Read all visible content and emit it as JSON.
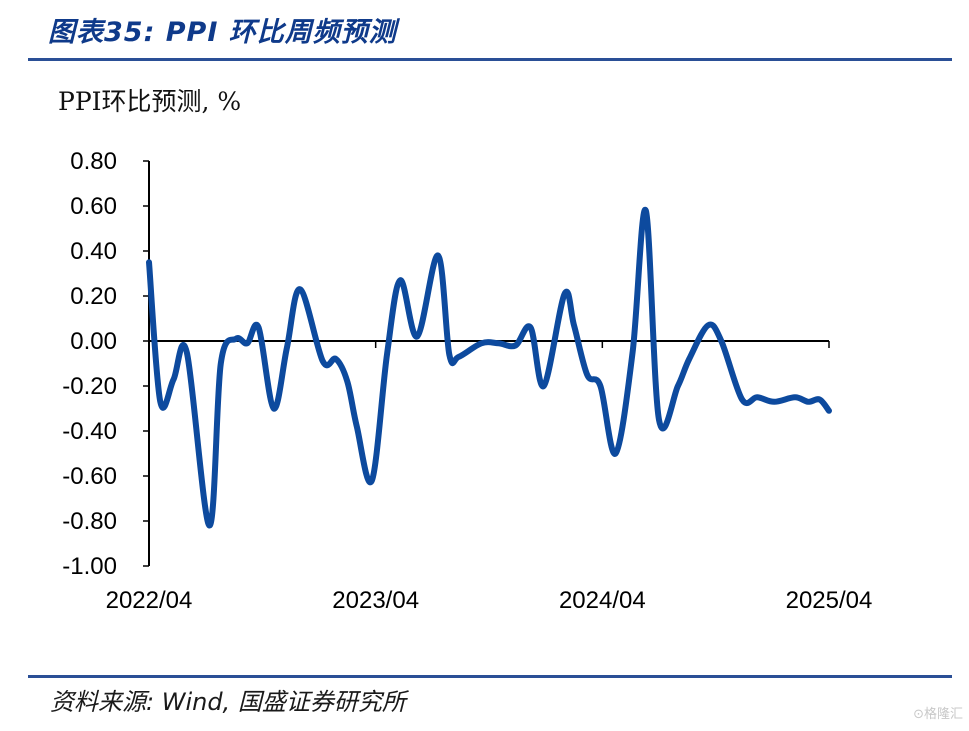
{
  "figure": {
    "title": "图表35:  PPI 环比周频预测",
    "source": "资料来源: Wind, 国盛证券研究所",
    "watermark": "⊙格隆汇"
  },
  "chart_data": {
    "type": "line",
    "title": "图表35:  PPI 环比周频预测",
    "ylabel": "PPI环比预测, %",
    "xlabel": "",
    "ylim": [
      -1.0,
      0.8
    ],
    "yticks": [
      0.8,
      0.6,
      0.4,
      0.2,
      0.0,
      -0.2,
      -0.4,
      -0.6,
      -0.8,
      -1.0
    ],
    "ytick_labels": [
      "0.80",
      "0.60",
      "0.40",
      "0.20",
      "0.00",
      "-0.20",
      "-0.40",
      "-0.60",
      "-0.80",
      "-1.00"
    ],
    "x_range_months": [
      0,
      36
    ],
    "xticks": [
      0,
      12,
      24,
      36
    ],
    "xtick_labels": [
      "2022/04",
      "2023/04",
      "2024/04",
      "2025/04"
    ],
    "grid": false,
    "legend": "none",
    "series": [
      {
        "name": "PPI环比预测",
        "color": "#0d4a9e",
        "x": [
          0,
          0.6,
          1.3,
          2.0,
          3.2,
          3.8,
          4.6,
          5.2,
          5.8,
          6.6,
          7.3,
          8.0,
          9.2,
          9.9,
          10.5,
          11.0,
          11.8,
          12.6,
          13.3,
          14.2,
          15.3,
          15.9,
          16.4,
          17.6,
          18.5,
          19.4,
          20.2,
          20.9,
          22.0,
          22.5,
          23.2,
          23.9,
          24.7,
          25.6,
          26.3,
          27.0,
          28.0,
          28.6,
          29.6,
          30.3,
          31.4,
          32.2,
          33.1,
          34.2,
          34.9,
          35.5,
          36.0
        ],
        "values": [
          0.35,
          -0.27,
          -0.17,
          -0.05,
          -0.82,
          -0.1,
          0.01,
          -0.01,
          0.06,
          -0.3,
          -0.03,
          0.23,
          -0.09,
          -0.08,
          -0.18,
          -0.38,
          -0.62,
          -0.06,
          0.27,
          0.02,
          0.38,
          -0.06,
          -0.07,
          -0.01,
          -0.01,
          -0.02,
          0.06,
          -0.2,
          0.21,
          0.07,
          -0.15,
          -0.2,
          -0.5,
          -0.05,
          0.58,
          -0.35,
          -0.2,
          -0.08,
          0.07,
          0.0,
          -0.26,
          -0.25,
          -0.27,
          -0.25,
          -0.27,
          -0.26,
          -0.31
        ]
      }
    ]
  }
}
